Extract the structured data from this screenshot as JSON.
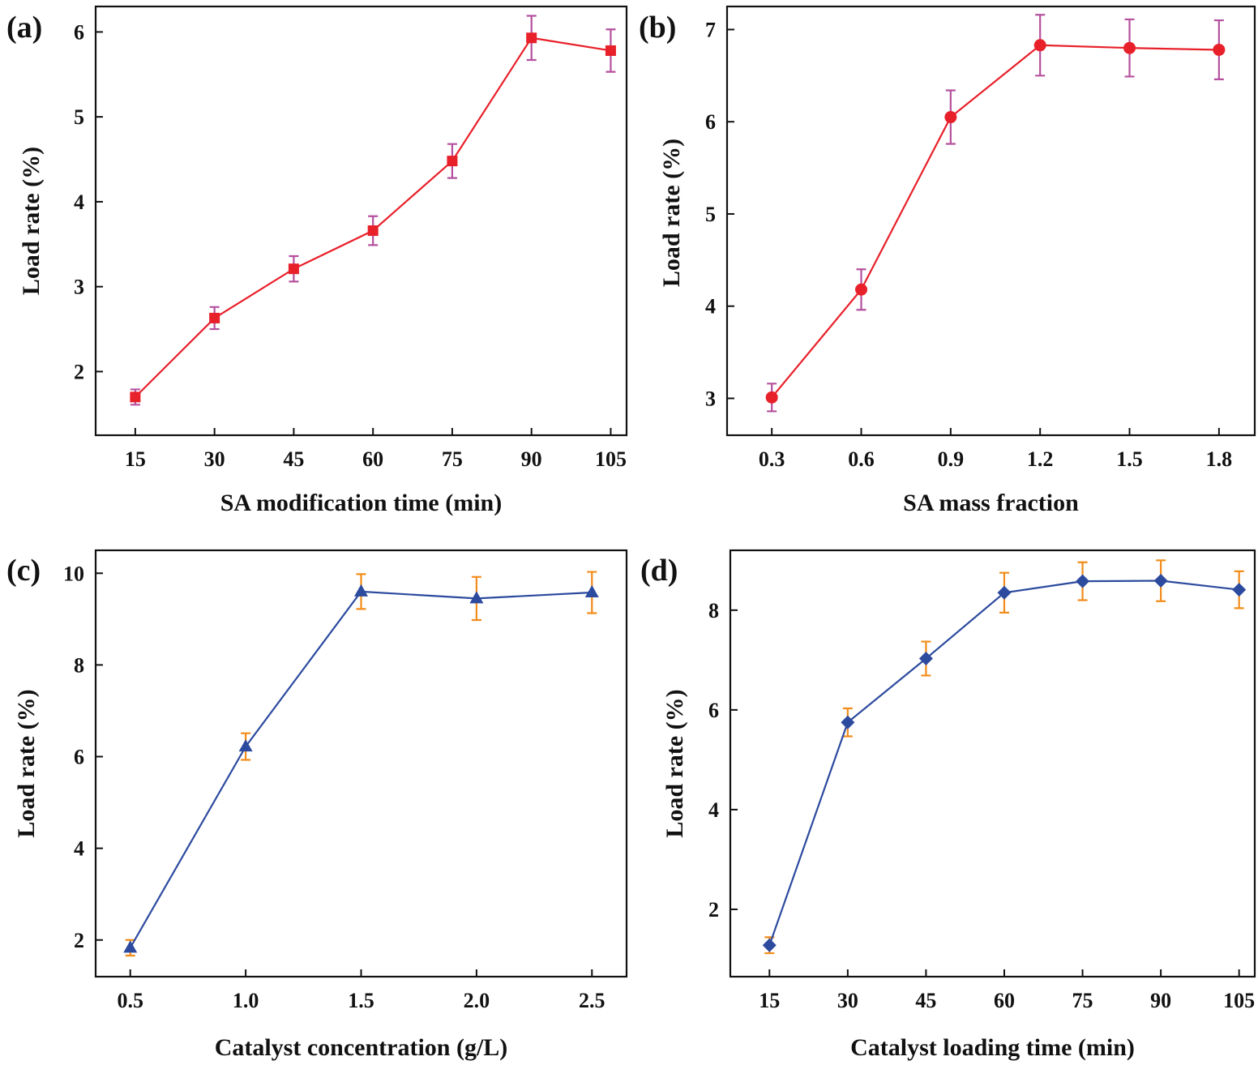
{
  "figure": {
    "chart_data": [
      {
        "panel": "(a)",
        "type": "line",
        "xlabel": "SA modification time (min)",
        "ylabel": "Load rate (%)",
        "x": [
          15,
          30,
          45,
          60,
          75,
          90,
          105
        ],
        "x_tick_labels": [
          "15",
          "30",
          "45",
          "60",
          "75",
          "90",
          "105"
        ],
        "xlim": [
          7.5,
          108
        ],
        "ylim": [
          1.25,
          6.3
        ],
        "y_ticks": [
          2,
          3,
          4,
          5,
          6
        ],
        "y_tick_labels": [
          "2",
          "3",
          "4",
          "5",
          "6"
        ],
        "grid": false,
        "marker": "square",
        "line_color": "#e8202a",
        "marker_color": "#e8202a",
        "error_color": "#b5509e",
        "series": [
          {
            "values": [
              1.7,
              2.63,
              3.21,
              3.66,
              4.48,
              5.93,
              5.78
            ],
            "errors": [
              0.09,
              0.13,
              0.15,
              0.17,
              0.2,
              0.26,
              0.25
            ]
          }
        ]
      },
      {
        "panel": "(b)",
        "type": "line",
        "xlabel": "SA mass fraction",
        "ylabel": "Load rate (%)",
        "x": [
          0.3,
          0.6,
          0.9,
          1.2,
          1.5,
          1.8
        ],
        "x_tick_labels": [
          "0.3",
          "0.6",
          "0.9",
          "1.2",
          "1.5",
          "1.8"
        ],
        "xlim": [
          0.15,
          1.92
        ],
        "ylim": [
          2.6,
          7.25
        ],
        "y_ticks": [
          3,
          4,
          5,
          6,
          7
        ],
        "y_tick_labels": [
          "3",
          "4",
          "5",
          "6",
          "7"
        ],
        "grid": false,
        "marker": "circle",
        "line_color": "#e8202a",
        "marker_color": "#e8202a",
        "error_color": "#b5509e",
        "series": [
          {
            "values": [
              3.01,
              4.18,
              6.05,
              6.83,
              6.8,
              6.78
            ],
            "errors": [
              0.15,
              0.22,
              0.29,
              0.33,
              0.31,
              0.32
            ]
          }
        ]
      },
      {
        "panel": "(c)",
        "type": "line",
        "xlabel": "Catalyst concentration (g/L)",
        "ylabel": "Load rate (%)",
        "x": [
          0.5,
          1.0,
          1.5,
          2.0,
          2.5
        ],
        "x_tick_labels": [
          "0.5",
          "1.0",
          "1.5",
          "2.0",
          "2.5"
        ],
        "xlim": [
          0.35,
          2.65
        ],
        "ylim": [
          1.2,
          10.5
        ],
        "y_ticks": [
          2,
          4,
          6,
          8,
          10
        ],
        "y_tick_labels": [
          "2",
          "4",
          "6",
          "8",
          "10"
        ],
        "grid": false,
        "marker": "triangle",
        "line_color": "#2c4a9e",
        "marker_color": "#2c4a9e",
        "error_color": "#f28c1a",
        "series": [
          {
            "values": [
              1.83,
              6.22,
              9.6,
              9.45,
              9.58
            ],
            "errors": [
              0.17,
              0.29,
              0.38,
              0.47,
              0.45
            ]
          }
        ]
      },
      {
        "panel": "(d)",
        "type": "line",
        "xlabel": "Catalyst loading time (min)",
        "ylabel": "Load rate (%)",
        "x": [
          15,
          30,
          45,
          60,
          75,
          90,
          105
        ],
        "x_tick_labels": [
          "15",
          "30",
          "45",
          "60",
          "75",
          "90",
          "105"
        ],
        "xlim": [
          7.5,
          108
        ],
        "ylim": [
          0.65,
          9.2
        ],
        "y_ticks": [
          2,
          4,
          6,
          8
        ],
        "y_tick_labels": [
          "2",
          "4",
          "6",
          "8"
        ],
        "grid": false,
        "marker": "diamond",
        "line_color": "#2c4a9e",
        "marker_color": "#2c4a9e",
        "error_color": "#f28c1a",
        "series": [
          {
            "values": [
              1.28,
              5.75,
              7.03,
              8.35,
              8.58,
              8.59,
              8.41
            ],
            "errors": [
              0.16,
              0.28,
              0.34,
              0.4,
              0.38,
              0.41,
              0.37
            ]
          }
        ]
      }
    ]
  }
}
